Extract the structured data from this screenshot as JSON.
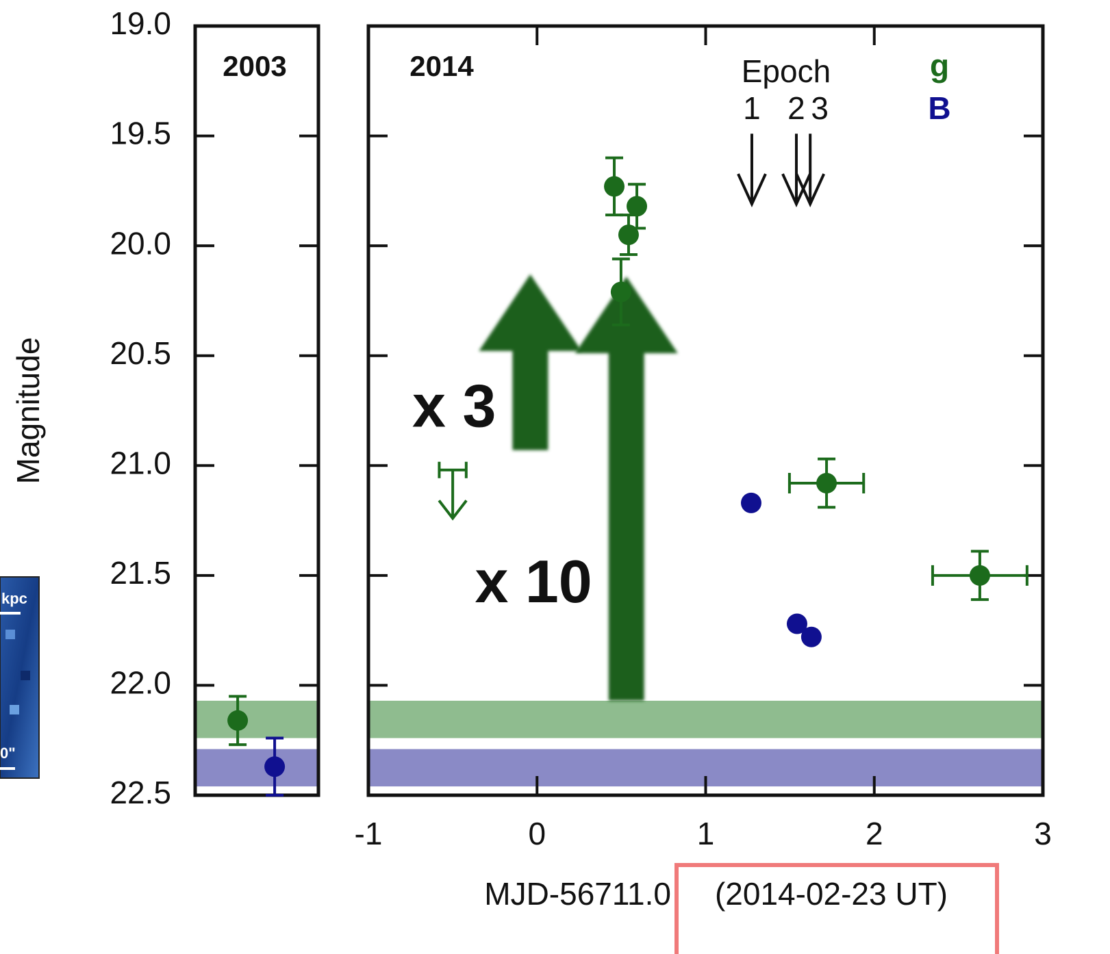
{
  "chart_data": [
    {
      "type": "scatter",
      "title": "2003",
      "ylabel": "Magnitude",
      "ylim": [
        19.0,
        22.5
      ],
      "yticks": [
        {
          "value": 19.0,
          "label": "19.0"
        },
        {
          "value": 19.5,
          "label": "19.5"
        },
        {
          "value": 20.0,
          "label": "20.0"
        },
        {
          "value": 20.5,
          "label": "20.5"
        },
        {
          "value": 21.0,
          "label": "21.0"
        },
        {
          "value": 21.5,
          "label": "21.5"
        },
        {
          "value": 22.0,
          "label": "22.0"
        },
        {
          "value": 22.5,
          "label": "22.5"
        }
      ],
      "bands": [
        {
          "color": "#8fbc8f",
          "range": [
            22.07,
            22.24
          ]
        },
        {
          "color": "#8a8ac6",
          "range": [
            22.29,
            22.46
          ]
        }
      ],
      "series": [
        {
          "color": "#1c6b1c",
          "values": [
            22.16
          ],
          "yerr": [
            0.11
          ]
        },
        {
          "color": "#101090",
          "values": [
            22.37
          ],
          "yerr": [
            0.13
          ]
        }
      ],
      "inset": {
        "labels": [
          "kpc",
          "0\""
        ]
      }
    },
    {
      "type": "scatter",
      "title": "2014",
      "xlabel": "MJD-56711.0",
      "xlabel_highlight": "(2014-02-23 UT)",
      "xlim": [
        -1,
        3
      ],
      "xticks": [
        -1,
        0,
        1,
        2,
        3
      ],
      "ylim": [
        19.0,
        22.5
      ],
      "bands": [
        {
          "color": "#8fbc8f",
          "range": [
            22.07,
            22.24
          ]
        },
        {
          "color": "#8a8ac6",
          "range": [
            22.29,
            22.46
          ]
        }
      ],
      "series": [
        {
          "name": "g",
          "color": "#1c6b1c",
          "x": [
            0.458,
            0.592,
            0.543,
            0.498,
            1.717,
            2.626
          ],
          "values": [
            19.73,
            19.82,
            19.95,
            20.21,
            21.08,
            21.5
          ],
          "yerr": [
            0.13,
            0.1,
            0.09,
            0.15,
            0.11,
            0.11
          ],
          "xerr": [
            null,
            null,
            null,
            null,
            0.22,
            0.28
          ]
        },
        {
          "name": "B",
          "color": "#101090",
          "x": [
            1.27,
            1.542,
            1.627
          ],
          "values": [
            21.17,
            21.72,
            21.78
          ]
        }
      ],
      "upper_limit": {
        "x": -0.5,
        "y": 21.02,
        "xerr": 0.08,
        "to": 21.24,
        "color": "#1c6b1c"
      },
      "epochs": {
        "label": "Epoch",
        "names": [
          "1",
          "2",
          "3"
        ],
        "x": [
          1.274,
          1.538,
          1.62
        ],
        "from": 19.49,
        "to": 19.81
      },
      "arrows": [
        {
          "label": "x 3",
          "x": -0.04,
          "from": 20.93,
          "to": 20.13
        },
        {
          "label": "x 10",
          "x": 0.53,
          "from": 22.07,
          "to": 20.14
        }
      ]
    }
  ]
}
